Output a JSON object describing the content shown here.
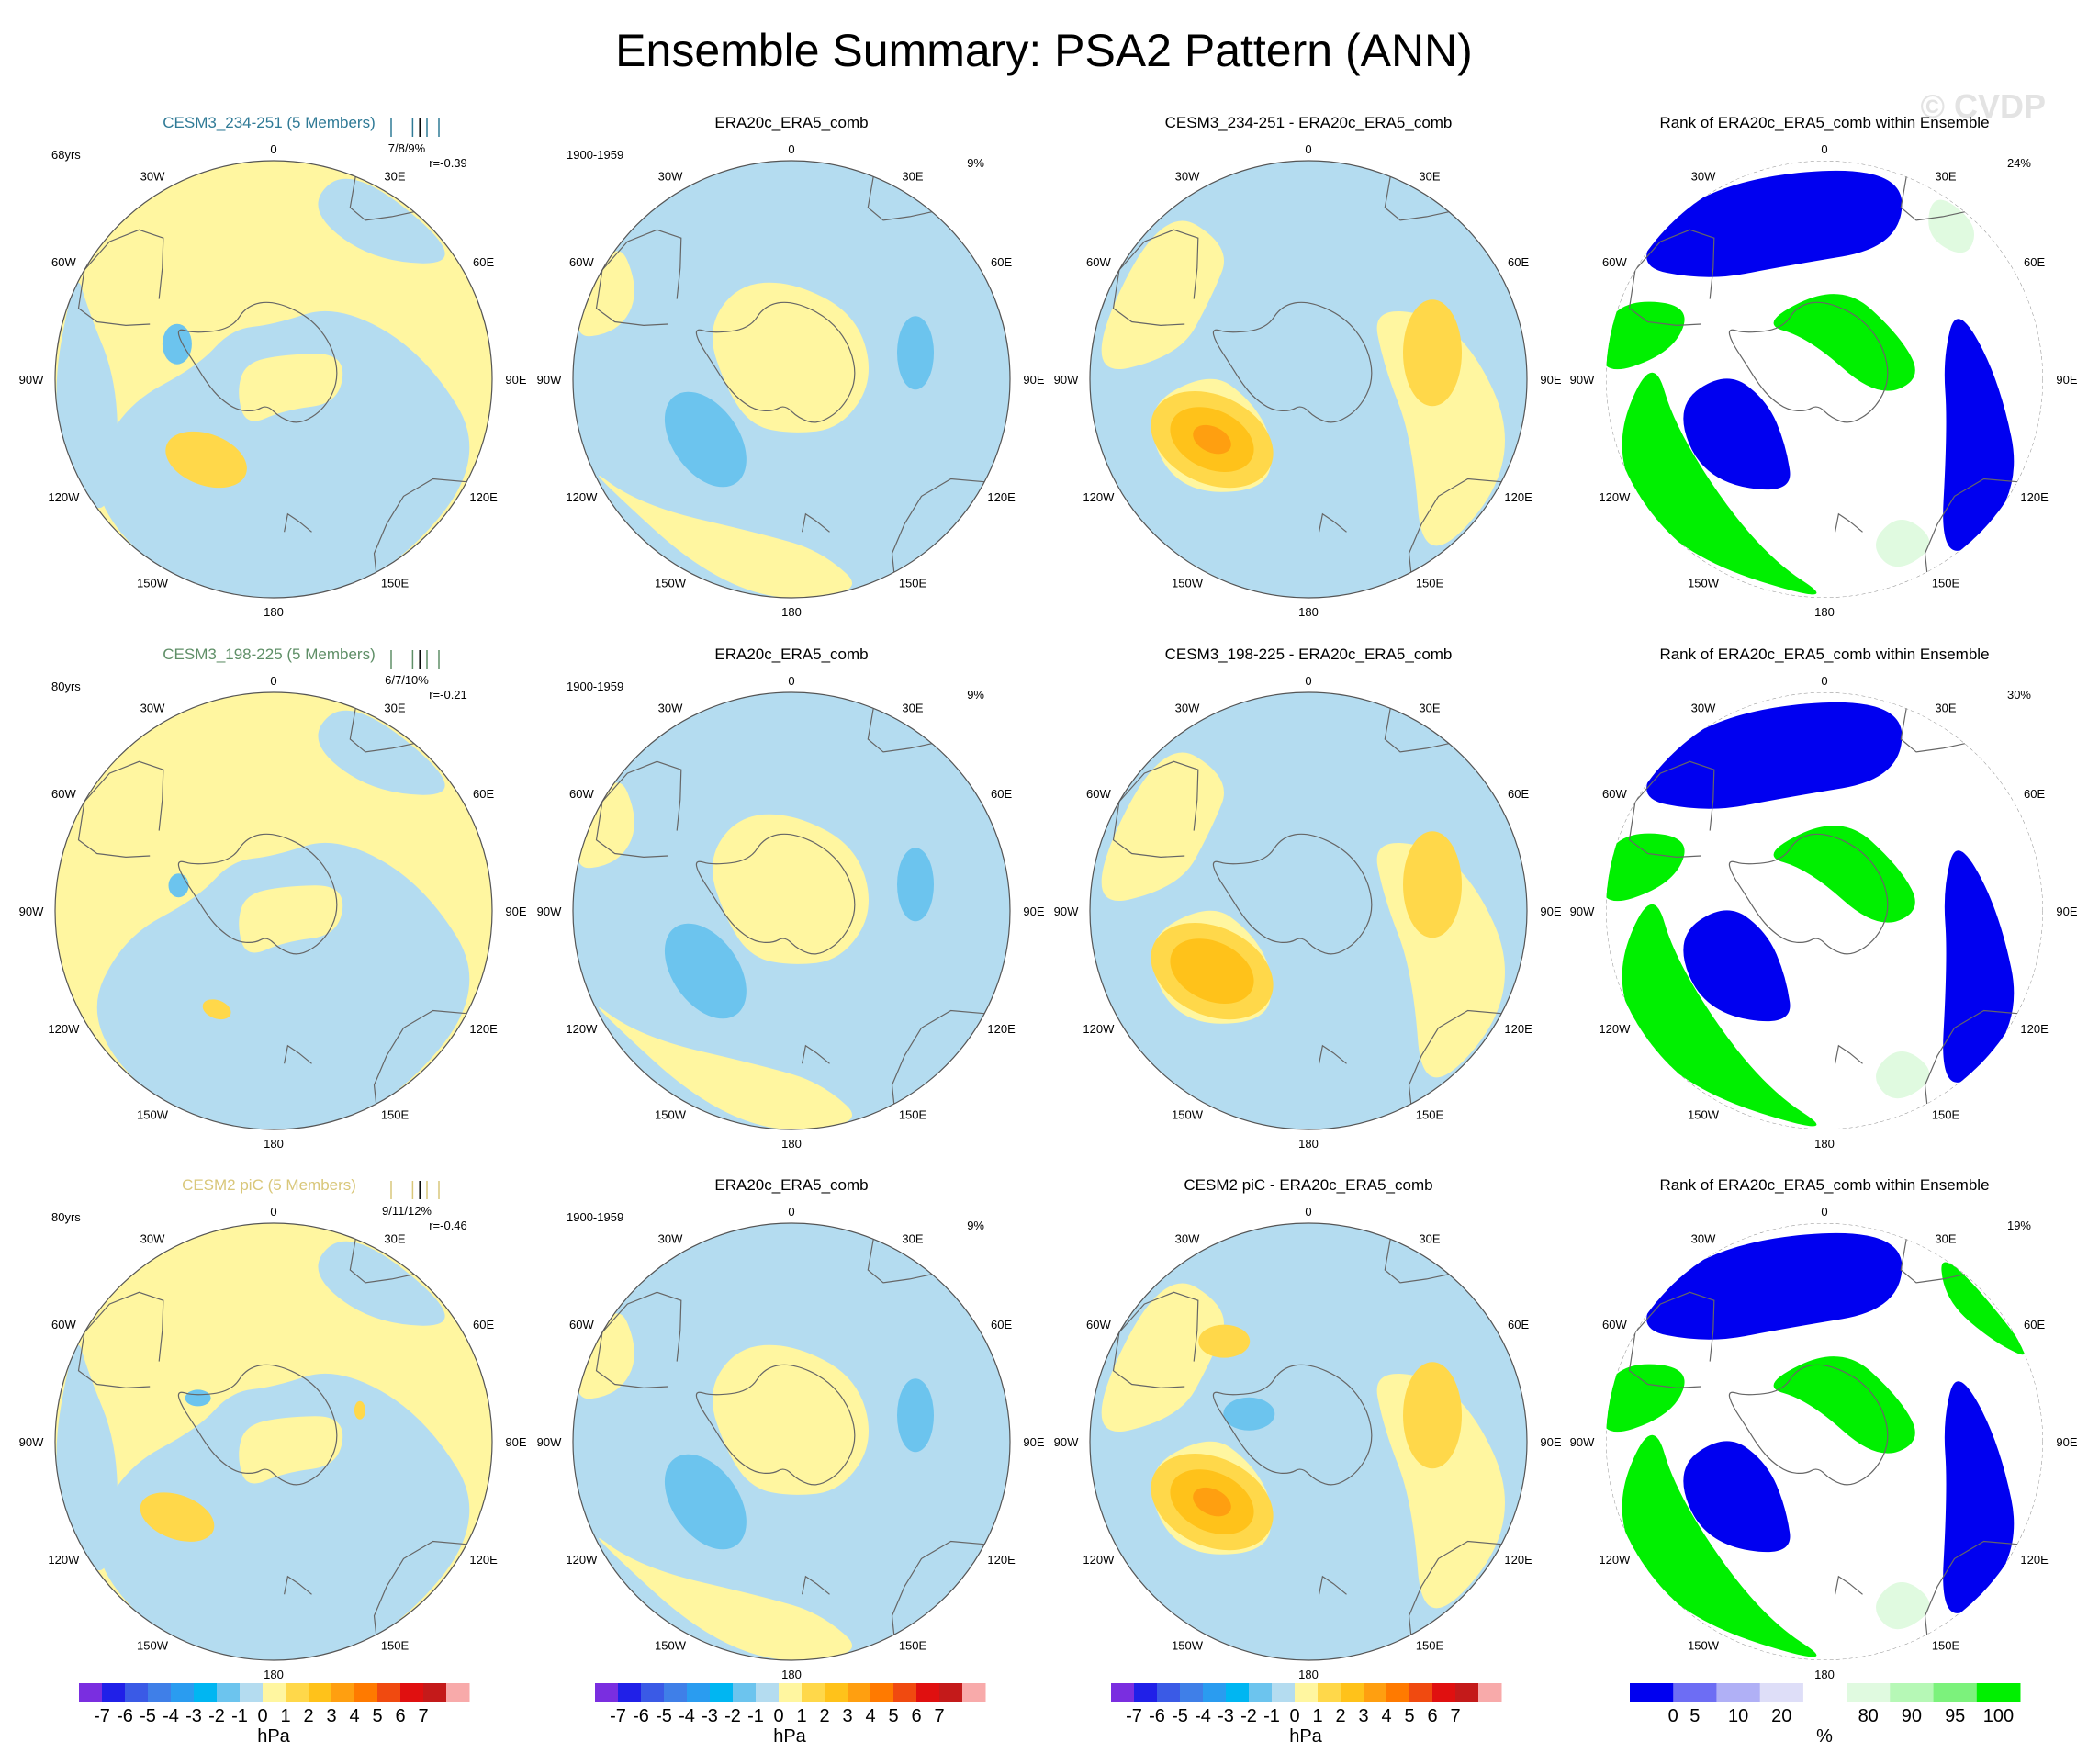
{
  "title": "Ensemble Summary: PSA2 Pattern (ANN)",
  "watermark": "© CVDP",
  "lon_labels": [
    "0",
    "30E",
    "60E",
    "90E",
    "120E",
    "150E",
    "180",
    "150W",
    "120W",
    "90W",
    "60W",
    "30W"
  ],
  "rows": [
    {
      "ens_title": "CESM3_234-251 (5 Members)",
      "ens_color": "#2f7a96",
      "years": "68yrs",
      "stats": "7/8/9%",
      "corr": "r=-0.39",
      "obs_title": "ERA20c_ERA5_comb",
      "obs_years": "1900-1959",
      "obs_pct": "9%",
      "diff_title": "CESM3_234-251 - ERA20c_ERA5_comb",
      "rank_title": "Rank of ERA20c_ERA5_comb within Ensemble",
      "rank_pct": "24%"
    },
    {
      "ens_title": "CESM3_198-225 (5 Members)",
      "ens_color": "#5f8f67",
      "years": "80yrs",
      "stats": "6/7/10%",
      "corr": "r=-0.21",
      "obs_title": "ERA20c_ERA5_comb",
      "obs_years": "1900-1959",
      "obs_pct": "9%",
      "diff_title": "CESM3_198-225 - ERA20c_ERA5_comb",
      "rank_title": "Rank of ERA20c_ERA5_comb within Ensemble",
      "rank_pct": "30%"
    },
    {
      "ens_title": "CESM2 piC (5 Members)",
      "ens_color": "#d9c77a",
      "years": "80yrs",
      "stats": "9/11/12%",
      "corr": "r=-0.46",
      "obs_title": "ERA20c_ERA5_comb",
      "obs_years": "1900-1959",
      "obs_pct": "9%",
      "diff_title": "CESM2 piC - ERA20c_ERA5_comb",
      "rank_title": "Rank of ERA20c_ERA5_comb within Ensemble",
      "rank_pct": "19%"
    }
  ],
  "colorbar_hpa": {
    "unit": "hPa",
    "colors": [
      "#7a2ee0",
      "#2020e8",
      "#3a5ae6",
      "#3f7fe8",
      "#2a9cf0",
      "#00b6f2",
      "#6cc4ee",
      "#b4dcf0",
      "#fff6a0",
      "#ffd84a",
      "#ffc21a",
      "#ff9f10",
      "#ff7a00",
      "#f04a10",
      "#e01010",
      "#c41a1a",
      "#f8aaaa"
    ],
    "tick_labels": [
      "-7",
      "-6",
      "-5",
      "-4",
      "-3",
      "-2",
      "-1",
      "0",
      "1",
      "2",
      "3",
      "4",
      "5",
      "6",
      "7"
    ]
  },
  "colorbar_rank": {
    "unit": "%",
    "colors": [
      "#0000f0",
      "#6d6df4",
      "#b0b0f6",
      "#dedef8",
      "#ffffff",
      "#e0fae0",
      "#b6f8b6",
      "#7cf27c",
      "#00f000"
    ],
    "tick_labels": [
      "0",
      "5",
      "10",
      "20",
      "80",
      "90",
      "95",
      "100"
    ]
  },
  "chart_data": [
    {
      "type": "heatmap",
      "title": "CESM3_234-251 (5 Members)",
      "field": "PSA2 pattern ensemble mean",
      "units": "hPa",
      "levels": [
        -7,
        -6,
        -5,
        -4,
        -3,
        -2,
        -1,
        0,
        1,
        2,
        3,
        4,
        5,
        6,
        7
      ],
      "features": [
        {
          "lon": -138,
          "lat": -55,
          "value": 2.5
        },
        {
          "lon": -100,
          "lat": -72,
          "value": -1.5
        }
      ]
    },
    {
      "type": "heatmap",
      "title": "ERA20c_ERA5_comb",
      "field": "PSA2 pattern observations",
      "units": "hPa",
      "levels": [
        -7,
        -6,
        -5,
        -4,
        -3,
        -2,
        -1,
        0,
        1,
        2,
        3,
        4,
        5,
        6,
        7
      ],
      "features": [
        {
          "lon": -125,
          "lat": -58,
          "value": -1.5
        },
        {
          "lon": 78,
          "lat": -58,
          "value": -1.5
        }
      ]
    },
    {
      "type": "heatmap",
      "title": "CESM3_234-251 - ERA20c_ERA5_comb",
      "field": "difference",
      "units": "hPa",
      "levels": [
        -7,
        -6,
        -5,
        -4,
        -3,
        -2,
        -1,
        0,
        1,
        2,
        3,
        4,
        5,
        6,
        7
      ],
      "features": [
        {
          "lon": -122,
          "lat": -62,
          "value": 4.5
        },
        {
          "lon": 78,
          "lat": -58,
          "value": 2.5
        }
      ]
    },
    {
      "type": "heatmap",
      "title": "Rank of ERA20c_ERA5_comb within Ensemble",
      "field": "rank",
      "units": "%",
      "levels": [
        0,
        5,
        10,
        20,
        80,
        90,
        95,
        100
      ],
      "pct_outside": 24
    },
    {
      "type": "heatmap",
      "title": "CESM3_198-225 (5 Members)",
      "field": "PSA2 pattern ensemble mean",
      "units": "hPa",
      "levels": [
        -7,
        -6,
        -5,
        -4,
        -3,
        -2,
        -1,
        0,
        1,
        2,
        3,
        4,
        5,
        6,
        7
      ],
      "features": [
        {
          "lon": -150,
          "lat": -55,
          "value": 1.5
        }
      ]
    },
    {
      "type": "heatmap",
      "title": "ERA20c_ERA5_comb",
      "field": "PSA2 pattern observations",
      "units": "hPa",
      "levels": [
        -7,
        -6,
        -5,
        -4,
        -3,
        -2,
        -1,
        0,
        1,
        2,
        3,
        4,
        5,
        6,
        7
      ],
      "features": [
        {
          "lon": -125,
          "lat": -58,
          "value": -1.5
        },
        {
          "lon": 78,
          "lat": -58,
          "value": -1.5
        }
      ]
    },
    {
      "type": "heatmap",
      "title": "CESM3_198-225 - ERA20c_ERA5_comb",
      "field": "difference",
      "units": "hPa",
      "levels": [
        -7,
        -6,
        -5,
        -4,
        -3,
        -2,
        -1,
        0,
        1,
        2,
        3,
        4,
        5,
        6,
        7
      ],
      "features": [
        {
          "lon": -122,
          "lat": -62,
          "value": 3.5
        },
        {
          "lon": 78,
          "lat": -58,
          "value": 2.5
        }
      ]
    },
    {
      "type": "heatmap",
      "title": "Rank of ERA20c_ERA5_comb within Ensemble",
      "field": "rank",
      "units": "%",
      "levels": [
        0,
        5,
        10,
        20,
        80,
        90,
        95,
        100
      ],
      "pct_outside": 30
    },
    {
      "type": "heatmap",
      "title": "CESM2 piC (5 Members)",
      "field": "PSA2 pattern ensemble mean",
      "units": "hPa",
      "levels": [
        -7,
        -6,
        -5,
        -4,
        -3,
        -2,
        -1,
        0,
        1,
        2,
        3,
        4,
        5,
        6,
        7
      ],
      "features": [
        {
          "lon": -128,
          "lat": -55,
          "value": 2.5
        }
      ]
    },
    {
      "type": "heatmap",
      "title": "ERA20c_ERA5_comb",
      "field": "PSA2 pattern observations",
      "units": "hPa",
      "levels": [
        -7,
        -6,
        -5,
        -4,
        -3,
        -2,
        -1,
        0,
        1,
        2,
        3,
        4,
        5,
        6,
        7
      ],
      "features": [
        {
          "lon": -125,
          "lat": -58,
          "value": -1.5
        },
        {
          "lon": 78,
          "lat": -58,
          "value": -1.5
        }
      ]
    },
    {
      "type": "heatmap",
      "title": "CESM2 piC - ERA20c_ERA5_comb",
      "field": "difference",
      "units": "hPa",
      "levels": [
        -7,
        -6,
        -5,
        -4,
        -3,
        -2,
        -1,
        0,
        1,
        2,
        3,
        4,
        5,
        6,
        7
      ],
      "features": [
        {
          "lon": -120,
          "lat": -62,
          "value": 4.5
        },
        {
          "lon": 78,
          "lat": -58,
          "value": 2.5
        }
      ]
    },
    {
      "type": "heatmap",
      "title": "Rank of ERA20c_ERA5_comb within Ensemble",
      "field": "rank",
      "units": "%",
      "levels": [
        0,
        5,
        10,
        20,
        80,
        90,
        95,
        100
      ],
      "pct_outside": 19
    }
  ]
}
